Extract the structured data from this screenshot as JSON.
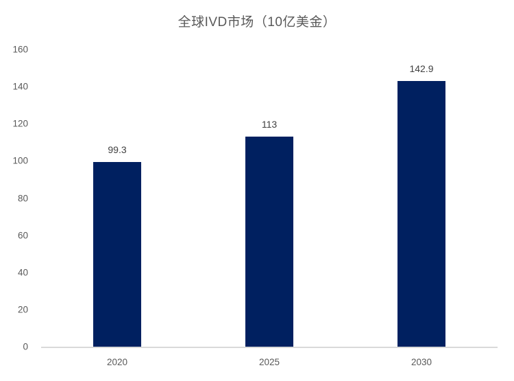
{
  "chart_data": {
    "type": "bar",
    "title": "全球IVD市场（10亿美金）",
    "categories": [
      "2020",
      "2025",
      "2030"
    ],
    "values": [
      99.3,
      113,
      142.9
    ],
    "value_labels": [
      "99.3",
      "113",
      "142.9"
    ],
    "xlabel": "",
    "ylabel": "",
    "ylim": [
      0,
      160
    ],
    "ytick_step": 20,
    "ytick_labels": [
      "0",
      "20",
      "40",
      "60",
      "80",
      "100",
      "120",
      "140",
      "160"
    ],
    "grid": "off",
    "legend": "none",
    "colors": {
      "bar": "#002060",
      "title": "#595959",
      "tick_label": "#595959",
      "data_label": "#404040",
      "axis_line": "#d9d9d9"
    }
  }
}
